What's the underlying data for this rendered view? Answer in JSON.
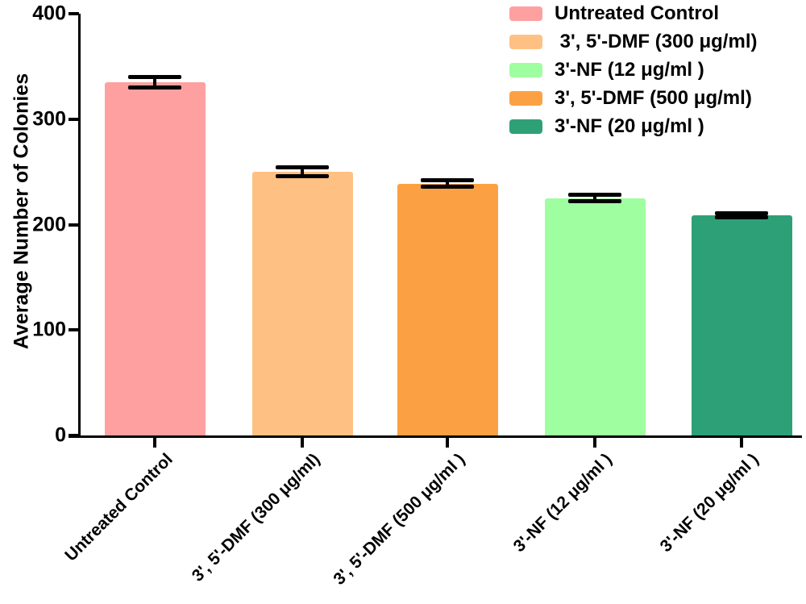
{
  "chart_data": {
    "type": "bar",
    "title": "",
    "xlabel": "",
    "ylabel": "Average Number of Colonies",
    "ylim": [
      0,
      400
    ],
    "yticks": [
      0,
      100,
      200,
      300,
      400
    ],
    "grid": false,
    "legend_position": "top-right",
    "categories": [
      "Untreated Control",
      "3', 5'-DMF (300 μg/ml)",
      "3', 5'-DMF (500 μg/ml )",
      "3'-NF (12 μg/ml )",
      "3'-NF (20 μg/ml )"
    ],
    "values": [
      335,
      250,
      239,
      225,
      209
    ],
    "errors": [
      5,
      4,
      3,
      3,
      2
    ],
    "bar_colors": [
      "#FEA0A0",
      "#FEC183",
      "#FCA143",
      "#9FFE9F",
      "#2EA077"
    ],
    "axis_color": "#000000",
    "legend": [
      {
        "label": "Untreated Control",
        "color": "#FEA0A0"
      },
      {
        "label": " 3', 5'-DMF (300 μg/ml)",
        "color": "#FEC183"
      },
      {
        "label": "3'-NF (12 μg/ml )",
        "color": "#9FFE9F"
      },
      {
        "label": "3', 5'-DMF (500 μg/ml)",
        "color": "#FCA143"
      },
      {
        "label": "3'-NF (20 μg/ml )",
        "color": "#2EA077"
      }
    ]
  }
}
